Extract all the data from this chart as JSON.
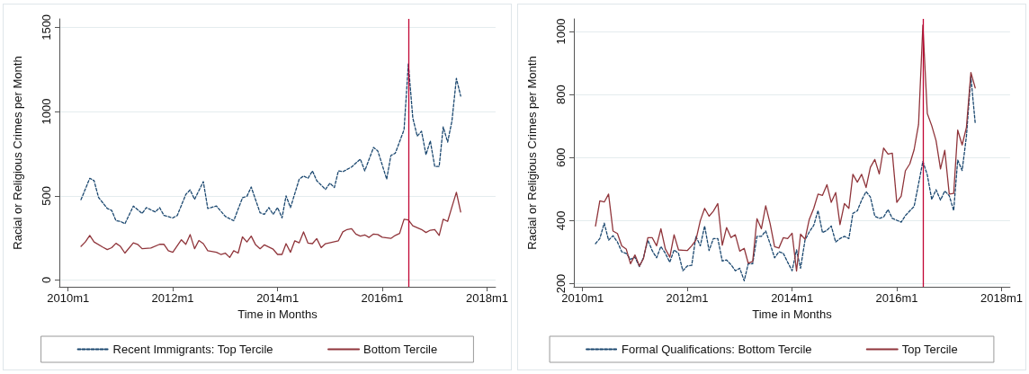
{
  "chart_data": [
    {
      "type": "line",
      "xlabel": "Time in Months",
      "ylabel": "Racial or Religious Crimes per Month",
      "xlim": [
        "2009-11",
        "2018-03"
      ],
      "xticks": [
        {
          "value": "2010-01",
          "label": "2010m1"
        },
        {
          "value": "2012-01",
          "label": "2012m1"
        },
        {
          "value": "2014-01",
          "label": "2014m1"
        },
        {
          "value": "2016-01",
          "label": "2016m1"
        },
        {
          "value": "2018-01",
          "label": "2018m1"
        }
      ],
      "ylim": [
        -40,
        1550
      ],
      "yticks": [
        0,
        500,
        1000,
        1500
      ],
      "grid": "y",
      "legend": "bottom",
      "marker": "none",
      "ref_lines": [
        {
          "axis": "x",
          "value": "2016-07",
          "color": "#c10534"
        }
      ],
      "series": [
        {
          "name": "Recent Immigrants: Top Tercile",
          "color": "#1a476f",
          "line_style": "dashed",
          "x": [
            "2010-04",
            "2010-06",
            "2010-07",
            "2010-08",
            "2010-10",
            "2010-11",
            "2010-12",
            "2011-01",
            "2011-02",
            "2011-04",
            "2011-06",
            "2011-07",
            "2011-09",
            "2011-10",
            "2011-11",
            "2012-01",
            "2012-02",
            "2012-04",
            "2012-05",
            "2012-06",
            "2012-08",
            "2012-09",
            "2012-11",
            "2013-01",
            "2013-03",
            "2013-05",
            "2013-06",
            "2013-07",
            "2013-09",
            "2013-10",
            "2013-11",
            "2013-12",
            "2014-01",
            "2014-02",
            "2014-03",
            "2014-04",
            "2014-06",
            "2014-07",
            "2014-08",
            "2014-09",
            "2014-10",
            "2014-12",
            "2015-01",
            "2015-02",
            "2015-03",
            "2015-04",
            "2015-06",
            "2015-08",
            "2015-09",
            "2015-11",
            "2015-12",
            "2016-02",
            "2016-03",
            "2016-04",
            "2016-06",
            "2016-07",
            "2016-08",
            "2016-09",
            "2016-10",
            "2016-11",
            "2016-12",
            "2017-01",
            "2017-02",
            "2017-03",
            "2017-04",
            "2017-05",
            "2017-06",
            "2017-07"
          ],
          "values": [
            477,
            604,
            590,
            491,
            425,
            413,
            352,
            348,
            334,
            439,
            395,
            430,
            404,
            430,
            383,
            369,
            383,
            508,
            535,
            479,
            584,
            425,
            439,
            378,
            352,
            488,
            497,
            552,
            399,
            390,
            430,
            390,
            430,
            369,
            500,
            430,
            599,
            618,
            604,
            648,
            590,
            538,
            575,
            549,
            648,
            643,
            671,
            718,
            648,
            787,
            766,
            599,
            739,
            753,
            892,
            1284,
            962,
            854,
            883,
            744,
            826,
            674,
            674,
            909,
            819,
            944,
            1197,
            1092
          ]
        },
        {
          "name": "Bottom Tercile",
          "color": "#90353b",
          "line_style": "solid",
          "x": [
            "2010-04",
            "2010-05",
            "2010-06",
            "2010-07",
            "2010-09",
            "2010-10",
            "2010-11",
            "2010-12",
            "2011-01",
            "2011-02",
            "2011-04",
            "2011-05",
            "2011-06",
            "2011-08",
            "2011-10",
            "2011-11",
            "2011-12",
            "2012-01",
            "2012-03",
            "2012-04",
            "2012-05",
            "2012-06",
            "2012-07",
            "2012-08",
            "2012-09",
            "2012-11",
            "2012-12",
            "2013-01",
            "2013-02",
            "2013-03",
            "2013-04",
            "2013-05",
            "2013-06",
            "2013-07",
            "2013-08",
            "2013-09",
            "2013-10",
            "2013-12",
            "2014-01",
            "2014-02",
            "2014-03",
            "2014-04",
            "2014-05",
            "2014-06",
            "2014-07",
            "2014-08",
            "2014-09",
            "2014-10",
            "2014-11",
            "2014-12",
            "2015-03",
            "2015-04",
            "2015-05",
            "2015-06",
            "2015-07",
            "2015-08",
            "2015-09",
            "2015-10",
            "2015-11",
            "2015-12",
            "2016-01",
            "2016-03",
            "2016-04",
            "2016-05",
            "2016-06",
            "2016-07",
            "2016-08",
            "2016-10",
            "2016-11",
            "2016-12",
            "2017-01",
            "2017-02",
            "2017-03",
            "2017-04",
            "2017-05",
            "2017-06",
            "2017-07"
          ],
          "values": [
            200,
            226,
            265,
            226,
            195,
            181,
            192,
            218,
            200,
            160,
            221,
            212,
            186,
            190,
            212,
            212,
            174,
            165,
            239,
            212,
            270,
            186,
            235,
            216,
            174,
            165,
            152,
            160,
            134,
            174,
            160,
            256,
            226,
            261,
            209,
            186,
            209,
            183,
            152,
            152,
            216,
            165,
            233,
            221,
            286,
            219,
            216,
            246,
            192,
            216,
            233,
            286,
            300,
            305,
            273,
            261,
            268,
            253,
            273,
            270,
            254,
            247,
            265,
            277,
            361,
            357,
            322,
            300,
            282,
            296,
            300,
            265,
            361,
            348,
            434,
            521,
            404
          ]
        }
      ]
    },
    {
      "type": "line",
      "xlabel": "Time in Months",
      "ylabel": "Racial or Religious Crimes per Month",
      "xlim": [
        "2009-11",
        "2018-03"
      ],
      "xticks": [
        {
          "value": "2010-01",
          "label": "2010m1"
        },
        {
          "value": "2012-01",
          "label": "2012m1"
        },
        {
          "value": "2014-01",
          "label": "2014m1"
        },
        {
          "value": "2016-01",
          "label": "2016m1"
        },
        {
          "value": "2018-01",
          "label": "2018m1"
        }
      ],
      "ylim": [
        190,
        1040
      ],
      "yticks": [
        200,
        400,
        600,
        800,
        1000
      ],
      "grid": "y",
      "legend": "bottom",
      "marker": "none",
      "ref_lines": [
        {
          "axis": "x",
          "value": "2016-07",
          "color": "#c10534"
        }
      ],
      "x": [
        "2010-04",
        "2010-05",
        "2010-06",
        "2010-07",
        "2010-08",
        "2010-09",
        "2010-10",
        "2010-11",
        "2010-12",
        "2011-01",
        "2011-02",
        "2011-03",
        "2011-04",
        "2011-05",
        "2011-06",
        "2011-07",
        "2011-08",
        "2011-09",
        "2011-10",
        "2011-11",
        "2011-12",
        "2012-01",
        "2012-02",
        "2012-03",
        "2012-04",
        "2012-05",
        "2012-06",
        "2012-07",
        "2012-08",
        "2012-09",
        "2012-10",
        "2012-11",
        "2012-12",
        "2013-01",
        "2013-02",
        "2013-03",
        "2013-04",
        "2013-05",
        "2013-06",
        "2013-07",
        "2013-08",
        "2013-09",
        "2013-10",
        "2013-11",
        "2013-12",
        "2014-01",
        "2014-02",
        "2014-03",
        "2014-04",
        "2014-05",
        "2014-06",
        "2014-07",
        "2014-08",
        "2014-09",
        "2014-10",
        "2014-11",
        "2014-12",
        "2015-01",
        "2015-02",
        "2015-03",
        "2015-04",
        "2015-05",
        "2015-06",
        "2015-07",
        "2015-08",
        "2015-09",
        "2015-10",
        "2015-11",
        "2015-12",
        "2016-01",
        "2016-02",
        "2016-03",
        "2016-04",
        "2016-05",
        "2016-06",
        "2016-07",
        "2016-08",
        "2016-09",
        "2016-10",
        "2016-11",
        "2016-12",
        "2017-01",
        "2017-02",
        "2017-03",
        "2017-04",
        "2017-05",
        "2017-06",
        "2017-07"
      ],
      "series": [
        {
          "name": "Formal Qualifications: Bottom Tercile",
          "color": "#1a476f",
          "line_style": "dashed",
          "values": [
            327,
            343,
            392,
            338,
            352,
            332,
            301,
            296,
            277,
            284,
            254,
            282,
            338,
            305,
            282,
            318,
            296,
            268,
            307,
            296,
            241,
            256,
            258,
            350,
            320,
            383,
            305,
            343,
            343,
            272,
            275,
            260,
            241,
            249,
            209,
            263,
            263,
            350,
            350,
            367,
            326,
            282,
            301,
            296,
            268,
            241,
            307,
            249,
            338,
            364,
            385,
            432,
            362,
            369,
            383,
            332,
            343,
            350,
            343,
            423,
            431,
            465,
            492,
            475,
            414,
            407,
            411,
            435,
            407,
            401,
            395,
            416,
            431,
            445,
            517,
            588,
            545,
            467,
            498,
            465,
            494,
            479,
            432,
            592,
            559,
            668,
            856,
            710
          ]
        },
        {
          "name": "Top Tercile",
          "color": "#90353b",
          "line_style": "solid",
          "values": [
            383,
            463,
            459,
            484,
            367,
            359,
            320,
            310,
            263,
            291,
            256,
            279,
            346,
            346,
            320,
            374,
            310,
            284,
            355,
            307,
            306,
            305,
            320,
            338,
            400,
            439,
            414,
            430,
            454,
            322,
            378,
            346,
            355,
            303,
            312,
            265,
            270,
            406,
            374,
            447,
            390,
            317,
            313,
            346,
            343,
            360,
            240,
            357,
            341,
            404,
            439,
            484,
            480,
            514,
            458,
            489,
            387,
            454,
            439,
            547,
            522,
            547,
            505,
            569,
            594,
            548,
            630,
            611,
            614,
            458,
            478,
            558,
            580,
            625,
            705,
            1020,
            740,
            701,
            654,
            564,
            623,
            484,
            486,
            687,
            640,
            696,
            870,
            821
          ]
        }
      ]
    }
  ]
}
